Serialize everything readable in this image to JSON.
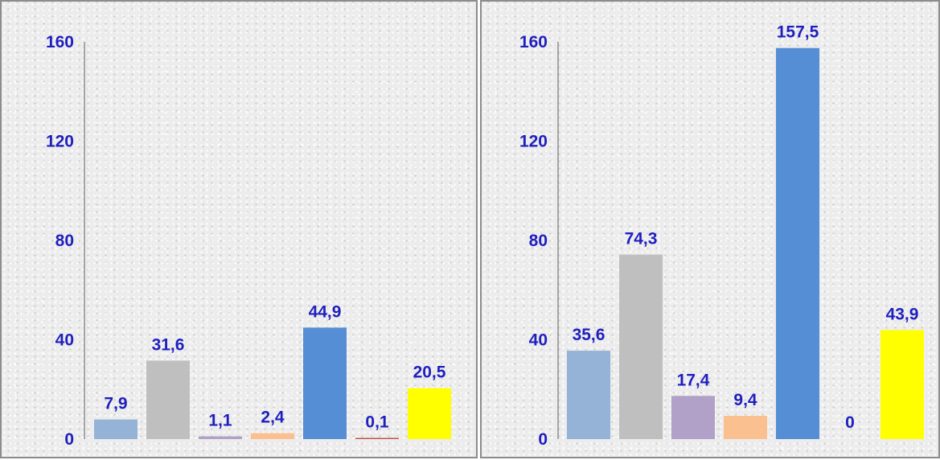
{
  "chart_data": [
    {
      "type": "bar",
      "title": "",
      "xlabel": "",
      "ylabel": "",
      "ylim": [
        0,
        160
      ],
      "yticks": [
        "0",
        "40",
        "80",
        "120",
        "160"
      ],
      "grid": false,
      "values": [
        7.9,
        31.6,
        1.1,
        2.4,
        44.9,
        0.1,
        20.5
      ],
      "value_labels": [
        "7,9",
        "31,6",
        "1,1",
        "2,4",
        "44,9",
        "0,1",
        "20,5"
      ],
      "colors": [
        "#95b3d7",
        "#bfbfbf",
        "#b1a0c7",
        "#fac090",
        "#558ed5",
        "#c0504d",
        "#ffff00"
      ]
    },
    {
      "type": "bar",
      "title": "",
      "xlabel": "",
      "ylabel": "",
      "ylim": [
        0,
        160
      ],
      "yticks": [
        "0",
        "40",
        "80",
        "120",
        "160"
      ],
      "grid": false,
      "values": [
        35.6,
        74.3,
        17.4,
        9.4,
        157.5,
        0,
        43.9
      ],
      "value_labels": [
        "35,6",
        "74,3",
        "17,4",
        "9,4",
        "157,5",
        "0",
        "43,9"
      ],
      "colors": [
        "#95b3d7",
        "#bfbfbf",
        "#b1a0c7",
        "#fac090",
        "#558ed5",
        "#c0504d",
        "#ffff00"
      ]
    }
  ]
}
